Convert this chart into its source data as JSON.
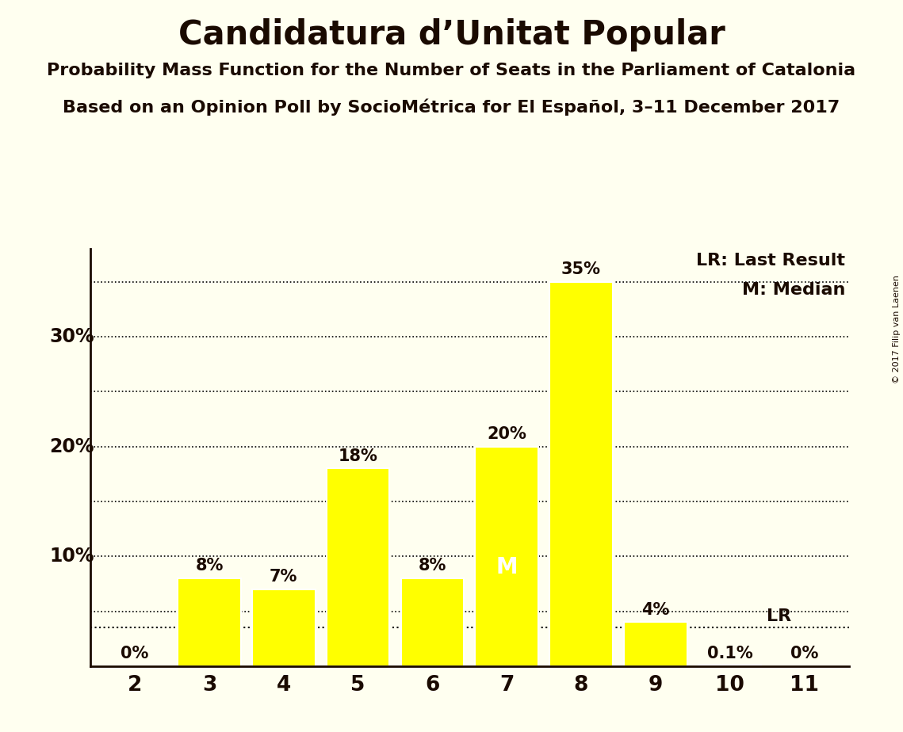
{
  "title": "Candidatura d’Unitat Popular",
  "subtitle1": "Probability Mass Function for the Number of Seats in the Parliament of Catalonia",
  "subtitle2": "Based on an Opinion Poll by SocioMétrica for El Español, 3–11 December 2017",
  "copyright": "© 2017 Filip van Laenen",
  "categories": [
    2,
    3,
    4,
    5,
    6,
    7,
    8,
    9,
    10,
    11
  ],
  "values": [
    0.0,
    8.0,
    7.0,
    18.0,
    8.0,
    20.0,
    35.0,
    4.0,
    0.1,
    0.0
  ],
  "labels": [
    "0%",
    "8%",
    "7%",
    "18%",
    "8%",
    "20%",
    "35%",
    "4%",
    "0.1%",
    "0%"
  ],
  "bar_color": "#FFFF00",
  "bar_edge_color": "#FFFFFF",
  "background_color": "#FFFFF0",
  "text_color": "#1a0a00",
  "median_seat": 7,
  "lr_seat": 10,
  "lr_value": 3.5,
  "ylim": [
    0,
    38
  ],
  "yticks": [
    0,
    5,
    10,
    15,
    20,
    25,
    30,
    35
  ],
  "ytick_shown": [
    10,
    20,
    30
  ],
  "ytick_labels_shown": [
    "10%",
    "20%",
    "30%"
  ],
  "grid_ticks": [
    5,
    10,
    15,
    20,
    25,
    30,
    35
  ],
  "grid_color": "#000000",
  "legend_lr": "LR: Last Result",
  "legend_m": "M: Median",
  "dotted_line_y": 3.5,
  "title_fontsize": 30,
  "subtitle_fontsize": 16,
  "label_fontsize": 15,
  "ytick_fontsize": 17,
  "xtick_fontsize": 19,
  "legend_fontsize": 16
}
